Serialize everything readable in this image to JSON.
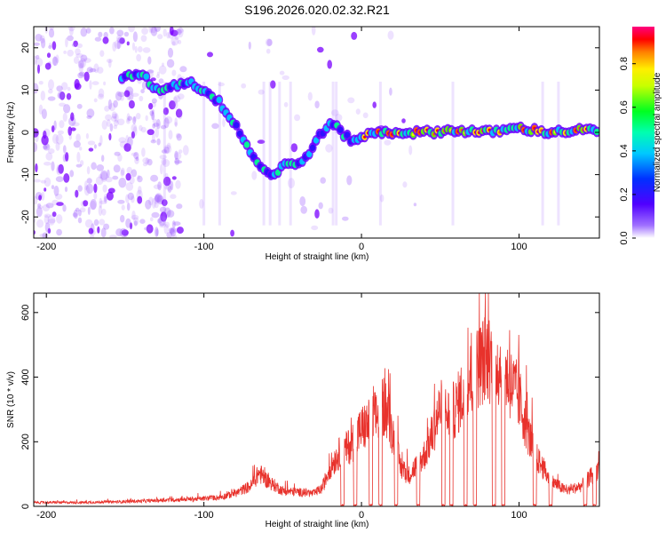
{
  "chart_data": [
    {
      "type": "heatmap",
      "title": "S196.2026.020.02.32.R21",
      "xlabel": "Height of straight line (km)",
      "ylabel": "Frequency (Hz)",
      "xlim": [
        -208,
        151
      ],
      "ylim": [
        -25,
        25
      ],
      "x_ticks": [
        -200,
        -100,
        0,
        100
      ],
      "y_ticks": [
        -20,
        -10,
        0,
        10,
        20
      ],
      "colorbar": {
        "label": "Normalized spectral amplitude",
        "range": [
          0,
          0.97
        ],
        "ticks": [
          0.0,
          0.2,
          0.4,
          0.6,
          0.8
        ],
        "tick_labels": [
          "0.0",
          "0.2",
          "0.4",
          "0.6",
          "0.8"
        ]
      },
      "ridge": {
        "x": [
          -150,
          -140,
          -130,
          -120,
          -110,
          -100,
          -90,
          -80,
          -70,
          -62,
          -55,
          -48,
          -42,
          -38,
          -32,
          -25,
          -20,
          -15,
          -10,
          -5,
          0,
          10,
          20,
          40,
          60,
          80,
          100,
          120,
          140,
          151
        ],
        "y": [
          13,
          14,
          10,
          11,
          12,
          10,
          7,
          2,
          -5,
          -9,
          -10,
          -7,
          -8,
          -7,
          -4,
          0,
          2,
          1,
          -1,
          -2,
          -1,
          0,
          0,
          0,
          0.5,
          0,
          1,
          0,
          0.5,
          0.5
        ]
      }
    },
    {
      "type": "line",
      "xlabel": "Height of straight line (km)",
      "ylabel": "SNR (10 * v/v)",
      "xlim": [
        -208,
        151
      ],
      "ylim": [
        0,
        660
      ],
      "x_ticks": [
        -200,
        -100,
        0,
        100
      ],
      "y_ticks": [
        0,
        200,
        400,
        600
      ],
      "color": "#e8322c",
      "envelope": {
        "x": [
          -208,
          -180,
          -150,
          -120,
          -100,
          -90,
          -80,
          -70,
          -65,
          -60,
          -50,
          -40,
          -30,
          -25,
          -20,
          -15,
          -10,
          -5,
          0,
          5,
          10,
          15,
          20,
          25,
          30,
          40,
          45,
          50,
          55,
          60,
          65,
          70,
          75,
          80,
          85,
          90,
          95,
          100,
          105,
          110,
          120,
          130,
          140,
          151
        ],
        "y": [
          15,
          15,
          18,
          25,
          30,
          35,
          50,
          80,
          130,
          100,
          60,
          55,
          50,
          70,
          150,
          200,
          220,
          250,
          300,
          320,
          350,
          400,
          280,
          150,
          120,
          200,
          280,
          380,
          350,
          380,
          450,
          500,
          550,
          580,
          560,
          530,
          470,
          420,
          300,
          200,
          100,
          60,
          80,
          150
        ]
      },
      "dropouts": [
        -12,
        -4,
        6,
        12,
        22,
        36,
        52,
        57,
        66,
        72,
        84,
        90,
        110,
        120,
        142,
        148
      ]
    }
  ]
}
